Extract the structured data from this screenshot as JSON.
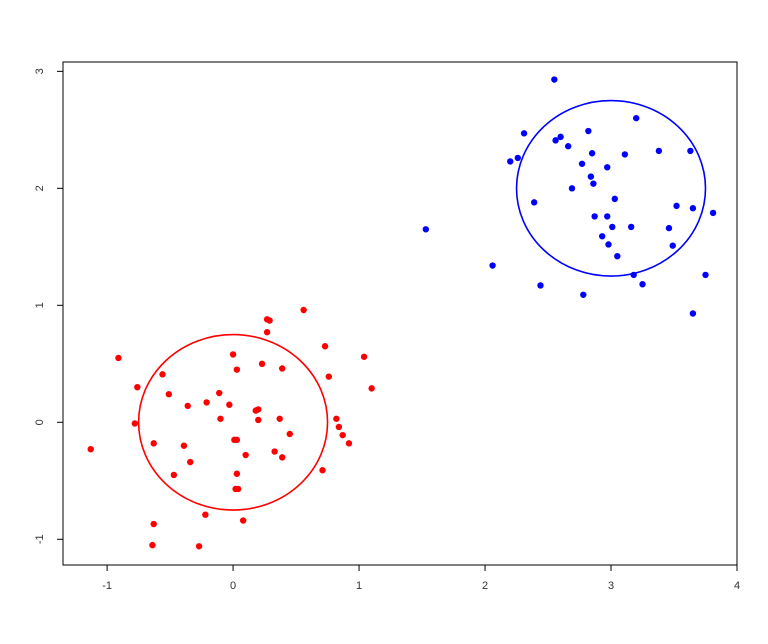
{
  "chart_data": {
    "type": "scatter",
    "title": "",
    "xlabel": "",
    "ylabel": "",
    "xlim": [
      -1.35,
      4.0
    ],
    "ylim": [
      -1.22,
      3.08
    ],
    "grid": false,
    "x_ticks": [
      -1,
      0,
      1,
      2,
      3,
      4
    ],
    "x_tick_labels": [
      "-1",
      "0",
      "1",
      "2",
      "3",
      "4"
    ],
    "y_ticks": [
      -1,
      0,
      1,
      2,
      3
    ],
    "y_tick_labels": [
      "-1",
      "0",
      "1",
      "2",
      "3"
    ],
    "series": [
      {
        "color": "#ff0000",
        "points": [
          [
            -1.13,
            -0.23
          ],
          [
            -0.91,
            0.55
          ],
          [
            -0.76,
            0.3
          ],
          [
            -0.78,
            -0.01
          ],
          [
            -0.63,
            -0.18
          ],
          [
            -0.56,
            0.41
          ],
          [
            -0.51,
            0.24
          ],
          [
            -0.47,
            -0.45
          ],
          [
            -0.39,
            -0.2
          ],
          [
            -0.36,
            0.14
          ],
          [
            -0.34,
            -0.34
          ],
          [
            -0.21,
            0.17
          ],
          [
            -0.11,
            0.25
          ],
          [
            -0.1,
            0.03
          ],
          [
            -0.03,
            0.15
          ],
          [
            0.0,
            0.58
          ],
          [
            0.03,
            0.45
          ],
          [
            0.01,
            -0.15
          ],
          [
            0.03,
            -0.15
          ],
          [
            0.03,
            -0.44
          ],
          [
            0.02,
            -0.57
          ],
          [
            0.04,
            -0.57
          ],
          [
            0.1,
            -0.28
          ],
          [
            0.08,
            -0.84
          ],
          [
            0.18,
            0.1
          ],
          [
            0.2,
            0.11
          ],
          [
            0.2,
            0.02
          ],
          [
            0.23,
            0.5
          ],
          [
            0.27,
            0.77
          ],
          [
            0.27,
            0.88
          ],
          [
            0.29,
            0.87
          ],
          [
            0.33,
            -0.25
          ],
          [
            0.37,
            0.03
          ],
          [
            0.39,
            0.46
          ],
          [
            0.39,
            -0.3
          ],
          [
            0.45,
            -0.1
          ],
          [
            0.56,
            0.96
          ],
          [
            0.71,
            -0.41
          ],
          [
            0.73,
            0.65
          ],
          [
            0.76,
            0.39
          ],
          [
            0.82,
            0.03
          ],
          [
            0.84,
            -0.04
          ],
          [
            0.87,
            -0.11
          ],
          [
            0.92,
            -0.18
          ],
          [
            1.04,
            0.56
          ],
          [
            1.1,
            0.29
          ],
          [
            -0.22,
            -0.79
          ],
          [
            -0.63,
            -0.87
          ],
          [
            -0.64,
            -1.05
          ],
          [
            -0.27,
            -1.06
          ]
        ],
        "circle": {
          "center": [
            0.0,
            0.0
          ],
          "radius": 0.75
        }
      },
      {
        "color": "#0000ff",
        "points": [
          [
            1.53,
            1.65
          ],
          [
            2.06,
            1.34
          ],
          [
            2.2,
            2.23
          ],
          [
            2.26,
            2.26
          ],
          [
            2.31,
            2.47
          ],
          [
            2.39,
            1.88
          ],
          [
            2.44,
            1.17
          ],
          [
            2.55,
            2.93
          ],
          [
            2.56,
            2.41
          ],
          [
            2.6,
            2.44
          ],
          [
            2.66,
            2.36
          ],
          [
            2.69,
            2.0
          ],
          [
            2.77,
            2.21
          ],
          [
            2.78,
            1.09
          ],
          [
            2.82,
            2.49
          ],
          [
            2.84,
            2.1
          ],
          [
            2.85,
            2.3
          ],
          [
            2.86,
            2.04
          ],
          [
            2.87,
            1.76
          ],
          [
            2.93,
            1.59
          ],
          [
            2.97,
            2.18
          ],
          [
            2.97,
            1.76
          ],
          [
            2.98,
            1.52
          ],
          [
            3.01,
            1.67
          ],
          [
            3.03,
            1.91
          ],
          [
            3.05,
            1.42
          ],
          [
            3.11,
            2.29
          ],
          [
            3.16,
            1.67
          ],
          [
            3.18,
            1.26
          ],
          [
            3.2,
            2.6
          ],
          [
            3.25,
            1.18
          ],
          [
            3.38,
            2.32
          ],
          [
            3.46,
            1.66
          ],
          [
            3.49,
            1.51
          ],
          [
            3.52,
            1.85
          ],
          [
            3.63,
            2.32
          ],
          [
            3.65,
            0.93
          ],
          [
            3.65,
            1.83
          ],
          [
            3.75,
            1.26
          ],
          [
            3.81,
            1.79
          ]
        ],
        "circle": {
          "center": [
            3.0,
            2.0
          ],
          "radius": 0.75
        }
      }
    ]
  }
}
